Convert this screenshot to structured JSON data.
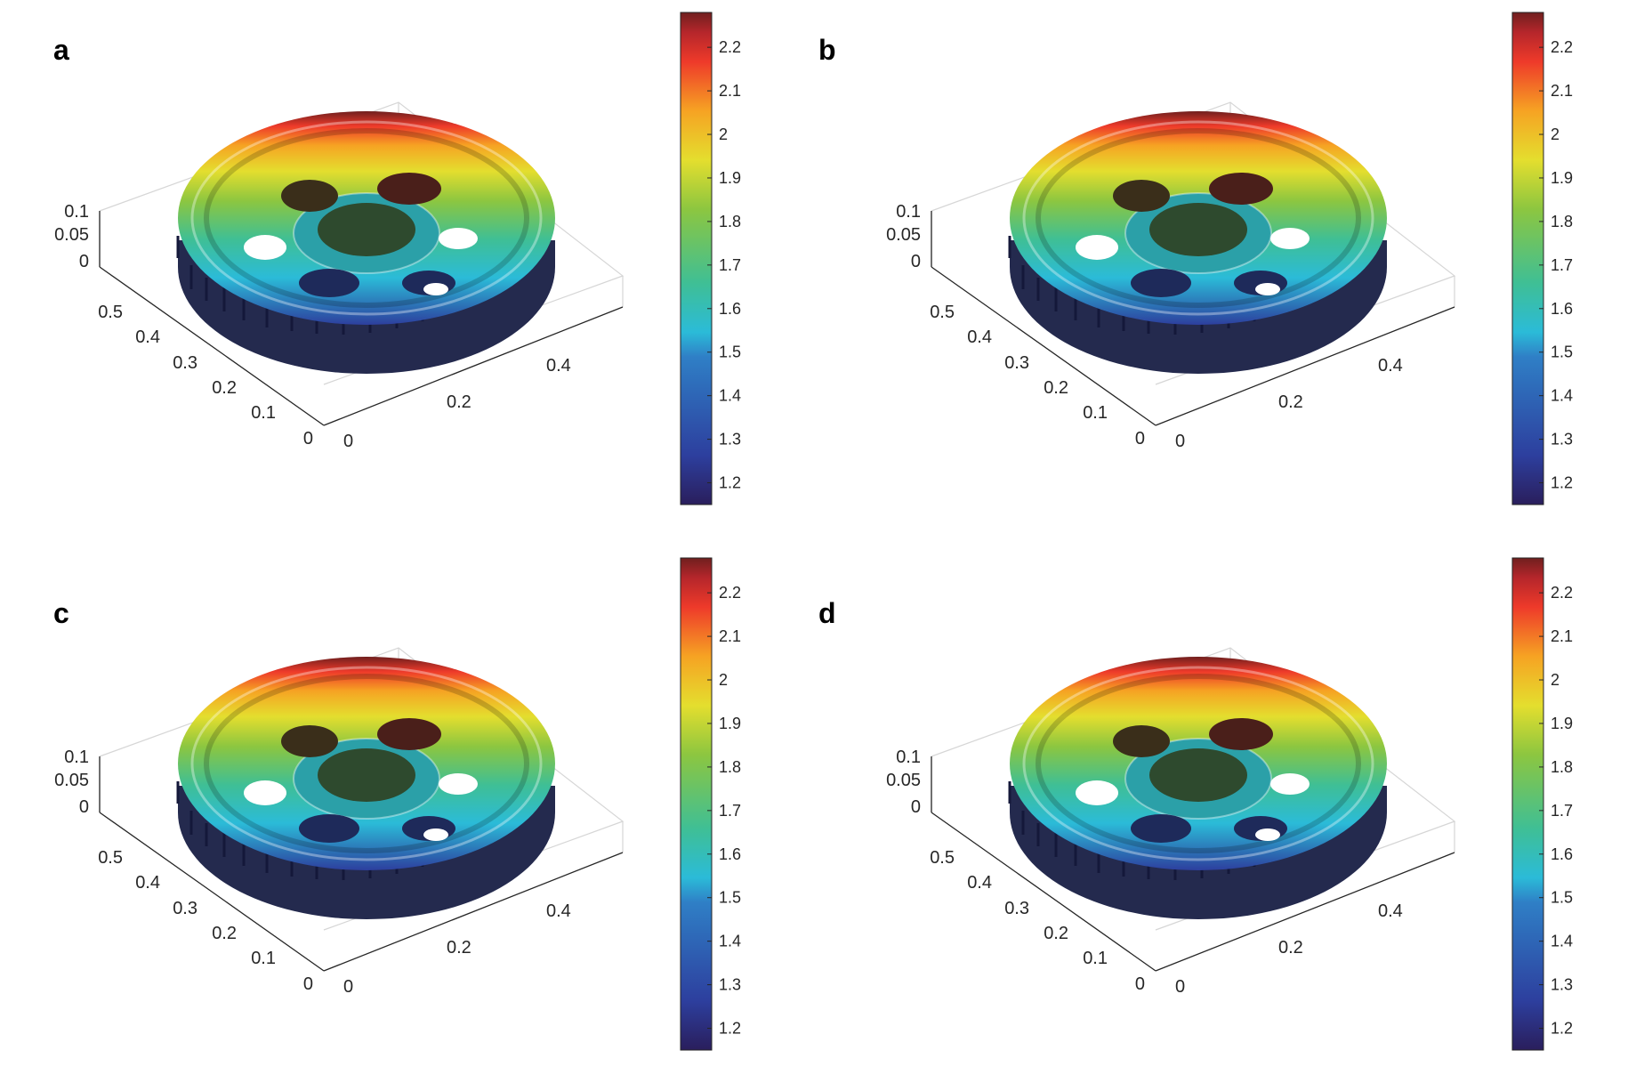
{
  "panels": [
    {
      "label": "a"
    },
    {
      "label": "b"
    },
    {
      "label": "c"
    },
    {
      "label": "d"
    }
  ],
  "axes": {
    "z_ticks": [
      "0",
      "0.05",
      "0.1"
    ],
    "y_ticks": [
      "0",
      "0.1",
      "0.2",
      "0.3",
      "0.4",
      "0.5"
    ],
    "x_ticks": [
      "0",
      "0.2",
      "0.4"
    ]
  },
  "colorbar": {
    "min": 1.15,
    "max": 2.28,
    "ticks": [
      "1.2",
      "1.3",
      "1.4",
      "1.5",
      "1.6",
      "1.7",
      "1.8",
      "1.9",
      "2",
      "2.1",
      "2.2"
    ]
  },
  "colors": {
    "colormap": [
      "#2a1e5c",
      "#2d3f9e",
      "#2f7fc6",
      "#2bbbd8",
      "#3fbf95",
      "#8cc640",
      "#e4de2e",
      "#f6a323",
      "#ee3a2a",
      "#b5262b",
      "#701f1e"
    ],
    "gear_body_dark": "#242a4e",
    "axis_box": "#d6d6d6"
  }
}
